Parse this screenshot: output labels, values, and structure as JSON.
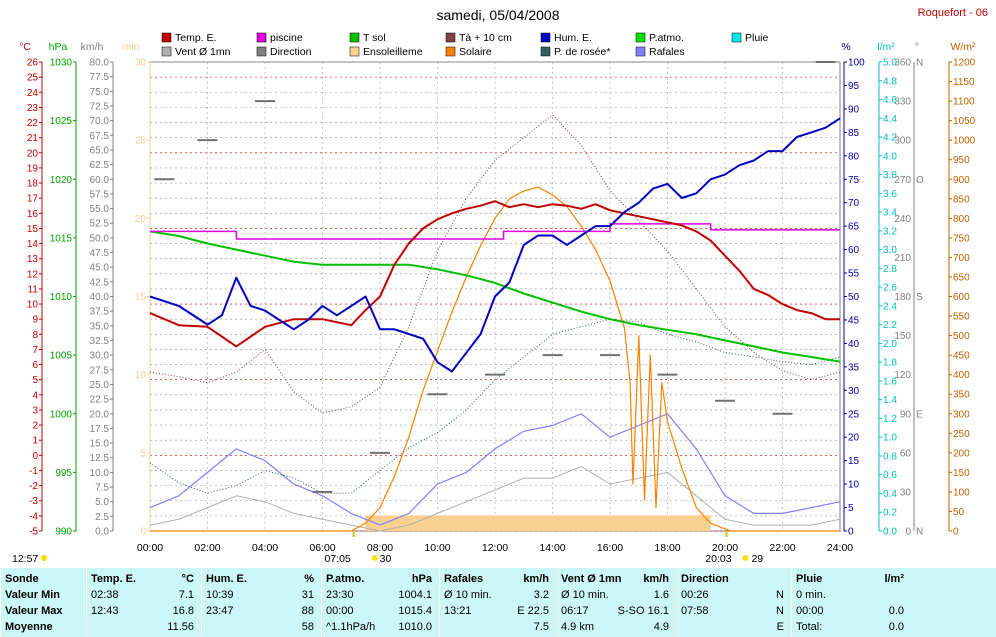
{
  "title": "samedi, 05/04/2008",
  "station": "Roquefort - 06",
  "legend": [
    {
      "label": "Temp. E.",
      "color": "#c00000",
      "col": 0,
      "row": 0
    },
    {
      "label": "piscine",
      "color": "#e000e0",
      "col": 1,
      "row": 0
    },
    {
      "label": "T sol",
      "color": "#00c000",
      "col": 2,
      "row": 0
    },
    {
      "label": "Tà + 10 cm",
      "color": "#804040",
      "col": 3,
      "row": 0
    },
    {
      "label": "Hum. E.",
      "color": "#0000c0",
      "col": 4,
      "row": 0
    },
    {
      "label": "P.atmo.",
      "color": "#00e000",
      "col": 5,
      "row": 0
    },
    {
      "label": "Pluie",
      "color": "#00e8e8",
      "col": 6,
      "row": 0
    },
    {
      "label": "Vent Ø 1mn",
      "color": "#b0b0b0",
      "col": 0,
      "row": 1
    },
    {
      "label": "Direction",
      "color": "#808080",
      "col": 1,
      "row": 1
    },
    {
      "label": "Ensoleilleme",
      "color": "#f8d090",
      "col": 2,
      "row": 1
    },
    {
      "label": "Solaire",
      "color": "#ff8000",
      "col": 3,
      "row": 1
    },
    {
      "label": "P. de rosée*",
      "color": "#306060",
      "col": 4,
      "row": 1
    },
    {
      "label": "Rafales",
      "color": "#8080ff",
      "col": 5,
      "row": 1
    }
  ],
  "axes": {
    "temp": {
      "unit": "°C",
      "color": "#c00000",
      "min": -5,
      "max": 26,
      "step": 1
    },
    "press": {
      "unit": "hPa",
      "color": "#00a000",
      "min": 990,
      "max": 1030,
      "step": 5
    },
    "wind": {
      "unit": "km/h",
      "color": "#808080",
      "min": 0,
      "max": 80,
      "step": 2.5
    },
    "min": {
      "unit": "min",
      "color": "#f8d090",
      "min": 0,
      "max": 30,
      "step": 5
    },
    "hum": {
      "unit": "%",
      "color": "#0000a0",
      "min": 0,
      "max": 100,
      "step": 5
    },
    "rain": {
      "unit": "l/m²",
      "color": "#00c0c0",
      "min": 0,
      "max": 5,
      "step": 0.2
    },
    "dir": {
      "unit": "°",
      "color": "#808080",
      "ticks": [
        "0",
        "30",
        "60",
        "90",
        "120",
        "150",
        "180",
        "210",
        "240",
        "270",
        "300",
        "330",
        "360"
      ],
      "letters": {
        "0": "N",
        "90": "E",
        "180": "S",
        "270": "O",
        "360": "N"
      }
    },
    "solar": {
      "unit": "W/m²",
      "color": "#c06000",
      "min": 0,
      "max": 1200,
      "step": 50
    },
    "x": {
      "ticks": [
        "00:00",
        "02:00",
        "04:00",
        "06:00",
        "08:00",
        "10:00",
        "12:00",
        "14:00",
        "16:00",
        "18:00",
        "20:00",
        "22:00",
        "24:00"
      ]
    }
  },
  "sun_marks": {
    "sunrise": "07:05",
    "sunrise_sun": "30",
    "sunset": "20:03",
    "sunset_sun": "29",
    "day_length": "12:57"
  },
  "chart_data": {
    "type": "line",
    "x_unit": "hour",
    "series": [
      {
        "name": "Temp. E.",
        "axis": "temp",
        "x": [
          0,
          1,
          2,
          3,
          4,
          5,
          6,
          7,
          7.5,
          8,
          8.5,
          9,
          9.5,
          10,
          10.5,
          11,
          11.5,
          12,
          12.5,
          13,
          13.5,
          14,
          14.5,
          15,
          15.5,
          16,
          16.5,
          17,
          17.5,
          18,
          18.5,
          19,
          19.5,
          20,
          20.5,
          21,
          21.5,
          22,
          22.5,
          23,
          23.5,
          24
        ],
        "values": [
          9.4,
          8.6,
          8.5,
          7.2,
          8.5,
          9.0,
          9.0,
          8.6,
          9.6,
          10.5,
          12.6,
          14.0,
          15.0,
          15.6,
          16.0,
          16.3,
          16.5,
          16.8,
          16.4,
          16.6,
          16.4,
          16.6,
          16.5,
          16.3,
          16.6,
          16.2,
          16.0,
          15.8,
          15.6,
          15.4,
          15.2,
          14.8,
          14.2,
          13.2,
          12.2,
          11.0,
          10.6,
          10.0,
          9.6,
          9.4,
          9.0,
          9.0
        ]
      },
      {
        "name": "piscine",
        "axis": "temp",
        "x": [
          0,
          3,
          3.01,
          12.3,
          12.3,
          16,
          16,
          19.5,
          19.5,
          24
        ],
        "values": [
          14.8,
          14.8,
          14.3,
          14.3,
          14.8,
          14.8,
          15.3,
          15.3,
          14.9,
          14.9
        ]
      },
      {
        "name": "T sol",
        "axis": "temp",
        "x": [
          0,
          1,
          2,
          3,
          4,
          5,
          6,
          7,
          8,
          9,
          10,
          11,
          12,
          13,
          14,
          15,
          16,
          17,
          18,
          19,
          20,
          21,
          22,
          23,
          24
        ],
        "values": [
          14.8,
          14.5,
          14.0,
          13.6,
          13.2,
          12.8,
          12.6,
          12.6,
          12.6,
          12.6,
          12.3,
          11.9,
          11.4,
          10.7,
          10.1,
          9.5,
          9.0,
          8.6,
          8.3,
          8.0,
          7.6,
          7.2,
          6.8,
          6.5,
          6.2
        ]
      },
      {
        "name": "Tà + 10 cm",
        "axis": "temp",
        "x": [
          0,
          1,
          2,
          3,
          4,
          5,
          6,
          7,
          8,
          9,
          10,
          11,
          12,
          13,
          14,
          15,
          16,
          17,
          18,
          19,
          20,
          21,
          22,
          23,
          24
        ],
        "values": [
          5.5,
          5.2,
          4.8,
          5.5,
          7.0,
          4.2,
          2.8,
          3.2,
          4.5,
          8.5,
          13.5,
          17.0,
          19.5,
          21.0,
          22.5,
          20.5,
          17.5,
          15.5,
          13.5,
          11.0,
          8.5,
          6.8,
          5.6,
          5.0,
          5.5
        ]
      },
      {
        "name": "Hum. E.",
        "axis": "hum",
        "x": [
          0,
          1,
          2,
          2.5,
          3,
          3.5,
          4,
          5,
          5.5,
          6,
          6.5,
          7,
          7.5,
          8,
          8.5,
          9,
          9.5,
          10,
          10.5,
          11,
          11.5,
          12,
          12.5,
          13,
          13.5,
          14,
          14.5,
          15,
          15.5,
          16,
          16.5,
          17,
          17.5,
          18,
          18.5,
          19,
          19.5,
          20,
          20.5,
          21,
          21.5,
          22,
          22.5,
          23,
          23.5,
          24
        ],
        "values": [
          50,
          48,
          44,
          46,
          54,
          48,
          47,
          43,
          45,
          48,
          46,
          48,
          50,
          43,
          43,
          42,
          41,
          36,
          34,
          38,
          42,
          50,
          53,
          61,
          63,
          63,
          61,
          63,
          65,
          65,
          68,
          70,
          73,
          74,
          71,
          72,
          75,
          76,
          78,
          79,
          81,
          81,
          84,
          85,
          86,
          88
        ]
      },
      {
        "name": "P. de rosée*",
        "axis": "temp",
        "x": [
          0,
          1,
          2,
          3,
          4,
          5,
          6,
          7,
          8,
          9,
          10,
          11,
          12,
          13,
          14,
          15,
          16,
          17,
          18,
          19,
          20,
          21,
          22,
          23,
          24
        ],
        "values": [
          -0.5,
          -1.8,
          -2.5,
          -2.0,
          -1.0,
          -1.5,
          -2.5,
          -2.5,
          -1.0,
          0.5,
          1.5,
          3.0,
          5.0,
          6.5,
          8.0,
          8.5,
          9.0,
          8.8,
          8.0,
          7.5,
          6.8,
          6.5,
          6.2,
          6.0,
          6.5
        ]
      },
      {
        "name": "Solaire",
        "axis": "solar",
        "x": [
          0,
          7,
          7.5,
          8,
          8.5,
          9,
          9.5,
          10,
          10.5,
          11,
          11.5,
          12,
          12.5,
          13,
          13.5,
          14,
          14.5,
          15,
          15.5,
          16,
          16.5,
          16.7,
          16.8,
          17,
          17.2,
          17.4,
          17.6,
          17.8,
          18,
          18.5,
          19,
          19.5,
          20,
          20.2,
          24
        ],
        "values": [
          0,
          0,
          20,
          60,
          140,
          240,
          360,
          460,
          560,
          650,
          730,
          800,
          850,
          870,
          880,
          860,
          830,
          780,
          720,
          640,
          520,
          380,
          120,
          500,
          80,
          450,
          60,
          380,
          280,
          160,
          60,
          20,
          5,
          0,
          0
        ]
      },
      {
        "name": "Rafales",
        "axis": "wind",
        "x": [
          0,
          1,
          2,
          3,
          4,
          5,
          6,
          7,
          8,
          9,
          10,
          11,
          12,
          13,
          14,
          15,
          16,
          17,
          18,
          19,
          20,
          21,
          22,
          23,
          24
        ],
        "values": [
          4,
          6,
          10,
          14,
          12,
          8,
          6,
          3,
          1,
          3,
          8,
          10,
          14,
          17,
          18,
          20,
          16,
          18,
          20,
          14,
          6,
          3,
          3,
          4,
          5
        ]
      },
      {
        "name": "Vent Ø 1mn",
        "axis": "wind",
        "x": [
          0,
          1,
          2,
          3,
          4,
          5,
          6,
          7,
          8,
          9,
          10,
          11,
          12,
          13,
          14,
          15,
          16,
          17,
          18,
          19,
          20,
          21,
          22,
          23,
          24
        ],
        "values": [
          1,
          2,
          4,
          6,
          5,
          3,
          2,
          1,
          0,
          1,
          3,
          5,
          7,
          9,
          9,
          11,
          8,
          9,
          10,
          6,
          2,
          1,
          1,
          1,
          2
        ]
      },
      {
        "name": "Direction",
        "axis": "dir",
        "x": [
          0.5,
          2,
          4,
          6,
          8,
          10,
          12,
          14,
          16,
          18,
          20,
          22,
          23.5
        ],
        "values": [
          270,
          300,
          330,
          30,
          60,
          105,
          120,
          135,
          135,
          120,
          100,
          90,
          360
        ]
      }
    ],
    "sunshine_bars": {
      "axis": "min",
      "from": 7.5,
      "to": 19.5,
      "value": 1
    }
  },
  "summary": {
    "columns": [
      {
        "title": "Sonde",
        "rows": [
          "Valeur Min",
          "Valeur Max",
          "Moyenne"
        ]
      },
      {
        "title": "Temp. E.",
        "unit": "°C",
        "rows": [
          [
            "02:38",
            "7.1"
          ],
          [
            "12:43",
            "16.8"
          ],
          [
            "",
            "11.56"
          ]
        ]
      },
      {
        "title": "Hum. E.",
        "unit": "%",
        "rows": [
          [
            "10:39",
            "31"
          ],
          [
            "23:47",
            "88"
          ],
          [
            "",
            "58"
          ]
        ]
      },
      {
        "title": "P.atmo.",
        "unit": "hPa",
        "rows": [
          [
            "23:30",
            "1004.1"
          ],
          [
            "00:00",
            "1015.4"
          ],
          [
            "^1.1hPa/h",
            "1010.0"
          ]
        ]
      },
      {
        "title": "Rafales",
        "unit": "km/h",
        "rows": [
          [
            "Ø 10 min.",
            "3.2"
          ],
          [
            "13:21",
            "E 22.5"
          ],
          [
            "",
            "7.5"
          ]
        ]
      },
      {
        "title": "Vent Ø 1mn",
        "unit": "km/h",
        "rows": [
          [
            "Ø 10 min.",
            "1.6"
          ],
          [
            "06:17",
            "S-SO 16.1"
          ],
          [
            "4.9 km",
            "4.9"
          ]
        ]
      },
      {
        "title": "Direction",
        "unit": "",
        "rows": [
          [
            "00:26",
            "N"
          ],
          [
            "07:58",
            "N"
          ],
          [
            "",
            "E"
          ]
        ]
      },
      {
        "title": "Pluie",
        "unit": "l/m²",
        "rows": [
          [
            "0 min.",
            ""
          ],
          [
            "00:00",
            "0.0"
          ],
          [
            "Total:",
            "0.0"
          ]
        ]
      }
    ]
  }
}
